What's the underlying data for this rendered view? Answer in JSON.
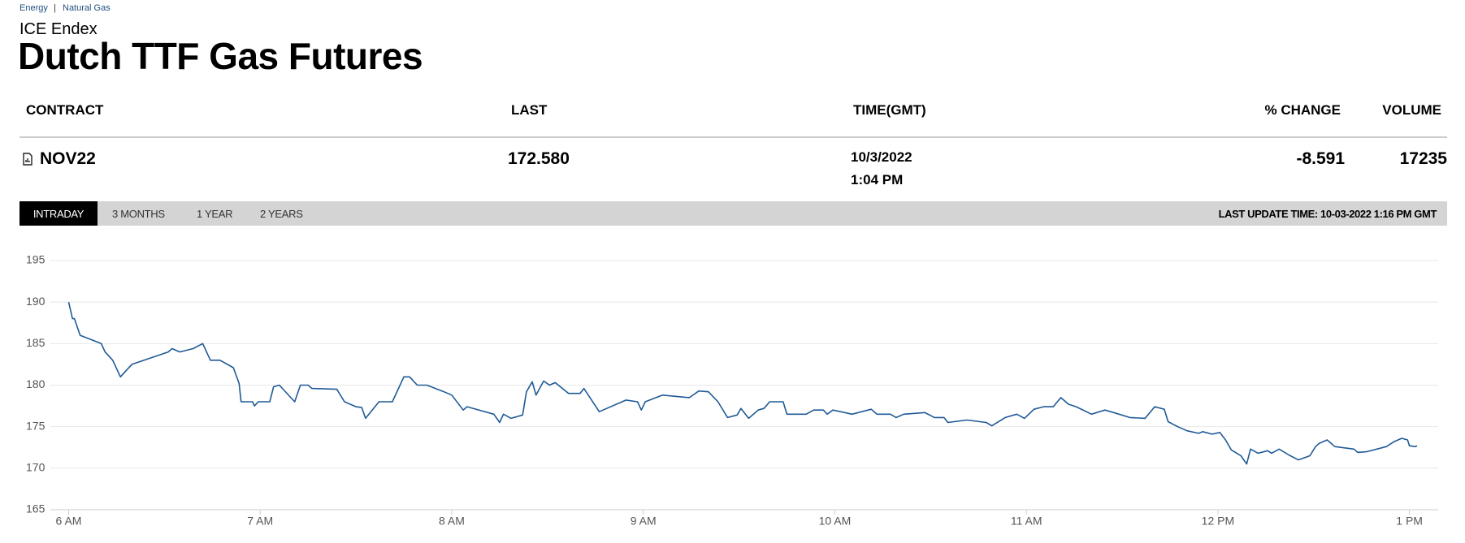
{
  "breadcrumb": [
    "Energy",
    "Natural Gas"
  ],
  "breadcrumb_separator": "|",
  "header": {
    "exchange": "ICE Endex",
    "title": "Dutch TTF Gas Futures"
  },
  "table": {
    "columns": [
      "CONTRACT",
      "LAST",
      "TIME(GMT)",
      "% CHANGE",
      "VOLUME"
    ],
    "row": {
      "contract": "NOV22",
      "last": "172.580",
      "date": "10/3/2022",
      "time": "1:04 PM",
      "change": "-8.591",
      "volume": "17235"
    }
  },
  "tabs": [
    "INTRADAY",
    "3 MONTHS",
    "1 YEAR",
    "2 YEARS"
  ],
  "last_update": "LAST UPDATE TIME: 10-03-2022 1:16 PM GMT",
  "chart_data": {
    "type": "line",
    "color": "#1f5a96",
    "grid": true,
    "xlim": [
      5.79,
      13.15
    ],
    "ylim": [
      165,
      195
    ],
    "xticks": [
      {
        "value": 6,
        "label": "6 AM"
      },
      {
        "value": 7,
        "label": "7 AM"
      },
      {
        "value": 8,
        "label": "8 AM"
      },
      {
        "value": 9,
        "label": "9 AM"
      },
      {
        "value": 10,
        "label": "10 AM"
      },
      {
        "value": 11,
        "label": "11 AM"
      },
      {
        "value": 12,
        "label": "12 PM"
      },
      {
        "value": 13,
        "label": "1 PM"
      }
    ],
    "yticks": [
      165,
      170,
      175,
      180,
      185,
      190,
      195
    ],
    "x": [
      6.0,
      6.02,
      6.03,
      6.06,
      6.17,
      6.19,
      6.23,
      6.27,
      6.33,
      6.52,
      6.54,
      6.58,
      6.65,
      6.7,
      6.74,
      6.79,
      6.86,
      6.89,
      6.9,
      6.96,
      6.97,
      6.99,
      7.05,
      7.07,
      7.1,
      7.18,
      7.21,
      7.25,
      7.27,
      7.4,
      7.44,
      7.5,
      7.53,
      7.55,
      7.62,
      7.69,
      7.75,
      7.78,
      7.82,
      7.87,
      7.96,
      8.0,
      8.06,
      8.08,
      8.22,
      8.25,
      8.27,
      8.31,
      8.37,
      8.39,
      8.42,
      8.44,
      8.48,
      8.51,
      8.54,
      8.61,
      8.67,
      8.69,
      8.77,
      8.91,
      8.97,
      8.99,
      9.01,
      9.1,
      9.24,
      9.29,
      9.34,
      9.39,
      9.44,
      9.49,
      9.51,
      9.55,
      9.6,
      9.63,
      9.66,
      9.73,
      9.75,
      9.85,
      9.89,
      9.94,
      9.96,
      9.99,
      10.09,
      10.19,
      10.22,
      10.29,
      10.32,
      10.36,
      10.47,
      10.52,
      10.57,
      10.59,
      10.69,
      10.79,
      10.82,
      10.89,
      10.95,
      10.99,
      11.04,
      11.09,
      11.14,
      11.18,
      11.22,
      11.26,
      11.34,
      11.41,
      11.47,
      11.54,
      11.62,
      11.67,
      11.72,
      11.74,
      11.79,
      11.84,
      11.9,
      11.92,
      11.97,
      12.01,
      12.04,
      12.07,
      12.12,
      12.15,
      12.17,
      12.21,
      12.26,
      12.28,
      12.32,
      12.37,
      12.42,
      12.48,
      12.51,
      12.53,
      12.57,
      12.61,
      12.71,
      12.73,
      12.78,
      12.88,
      12.92,
      12.96,
      12.99,
      13.0,
      13.03,
      13.04
    ],
    "values": [
      190,
      188,
      188,
      186,
      185,
      184,
      183,
      181,
      182.5,
      184,
      184.4,
      184,
      184.4,
      185,
      183,
      183,
      182.1,
      180.2,
      178,
      178,
      177.5,
      178,
      178,
      179.8,
      180,
      178,
      180,
      180,
      179.6,
      179.5,
      178,
      177.4,
      177.3,
      176,
      178,
      178,
      181,
      181,
      180,
      180,
      179.2,
      178.8,
      177,
      177.4,
      176.5,
      175.5,
      176.5,
      176,
      176.4,
      179.2,
      180.4,
      178.8,
      180.5,
      180,
      180.3,
      179,
      179,
      179.6,
      176.8,
      178.2,
      178,
      177,
      178,
      178.8,
      178.5,
      179.3,
      179.2,
      178,
      176.1,
      176.4,
      177.2,
      176,
      177,
      177.2,
      178,
      178,
      176.5,
      176.5,
      177,
      177,
      176.5,
      177,
      176.5,
      177.1,
      176.5,
      176.5,
      176.1,
      176.5,
      176.7,
      176.1,
      176.1,
      175.5,
      175.8,
      175.5,
      175.1,
      176.1,
      176.5,
      176,
      177.1,
      177.4,
      177.4,
      178.5,
      177.7,
      177.4,
      176.5,
      177,
      176.6,
      176.1,
      176,
      177.4,
      177.1,
      175.6,
      175,
      174.5,
      174.2,
      174.4,
      174.1,
      174.3,
      173.4,
      172.2,
      171.5,
      170.5,
      172.3,
      171.8,
      172.1,
      171.8,
      172.3,
      171.6,
      171,
      171.5,
      172.6,
      173,
      173.4,
      172.6,
      172.3,
      171.9,
      172,
      172.6,
      173.2,
      173.6,
      173.4,
      172.7,
      172.6,
      172.7
    ]
  }
}
